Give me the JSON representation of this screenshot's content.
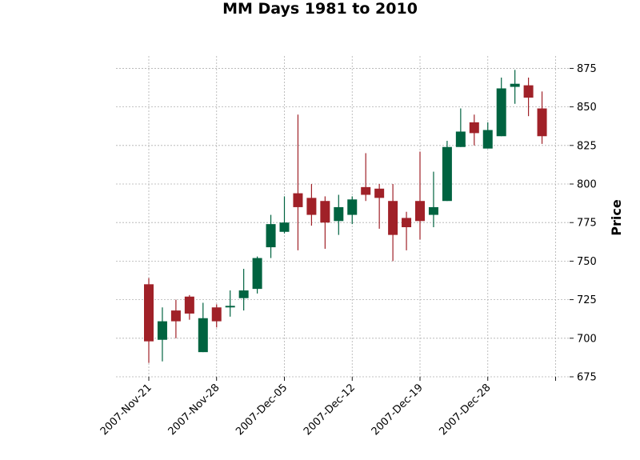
{
  "chart_data": {
    "type": "candlestick",
    "title": "MM Days 1981 to 2010",
    "ylabel": "Price",
    "ylim": [
      675,
      883
    ],
    "yticks": [
      675,
      700,
      725,
      750,
      775,
      800,
      825,
      850,
      875
    ],
    "y_axis_side": "right",
    "grid": true,
    "colors": {
      "up": "#006340",
      "down": "#a02128",
      "grid": "#b0b0b0"
    },
    "xtick_labels": [
      "2007-Nov-21",
      "2007-Nov-28",
      "2007-Dec-05",
      "2007-Dec-12",
      "2007-Dec-19",
      "2007-Dec-28",
      ""
    ],
    "xtick_positions": [
      0,
      5,
      10,
      15,
      20,
      25,
      30
    ],
    "candles": [
      {
        "open": 735,
        "high": 739,
        "low": 684,
        "close": 698
      },
      {
        "open": 699,
        "high": 720,
        "low": 685,
        "close": 711
      },
      {
        "open": 718,
        "high": 725,
        "low": 700,
        "close": 711
      },
      {
        "open": 727,
        "high": 728,
        "low": 712,
        "close": 716
      },
      {
        "open": 691,
        "high": 723,
        "low": 691,
        "close": 713
      },
      {
        "open": 720,
        "high": 722,
        "low": 707,
        "close": 711
      },
      {
        "open": 720,
        "high": 731,
        "low": 714,
        "close": 721
      },
      {
        "open": 726,
        "high": 745,
        "low": 718,
        "close": 731
      },
      {
        "open": 732,
        "high": 753,
        "low": 729,
        "close": 752
      },
      {
        "open": 759,
        "high": 780,
        "low": 752,
        "close": 774
      },
      {
        "open": 769,
        "high": 792,
        "low": 768,
        "close": 775
      },
      {
        "open": 794,
        "high": 845,
        "low": 757,
        "close": 785
      },
      {
        "open": 791,
        "high": 800,
        "low": 773,
        "close": 780
      },
      {
        "open": 789,
        "high": 792,
        "low": 758,
        "close": 775
      },
      {
        "open": 776,
        "high": 793,
        "low": 767,
        "close": 785
      },
      {
        "open": 780,
        "high": 792,
        "low": 774,
        "close": 790
      },
      {
        "open": 798,
        "high": 820,
        "low": 789,
        "close": 793
      },
      {
        "open": 797,
        "high": 800,
        "low": 771,
        "close": 791
      },
      {
        "open": 789,
        "high": 800,
        "low": 750,
        "close": 767
      },
      {
        "open": 778,
        "high": 782,
        "low": 757,
        "close": 772
      },
      {
        "open": 789,
        "high": 821,
        "low": 764,
        "close": 776
      },
      {
        "open": 780,
        "high": 808,
        "low": 772,
        "close": 785
      },
      {
        "open": 789,
        "high": 828,
        "low": 789,
        "close": 824
      },
      {
        "open": 824,
        "high": 849,
        "low": 824,
        "close": 834
      },
      {
        "open": 840,
        "high": 845,
        "low": 825,
        "close": 833
      },
      {
        "open": 823,
        "high": 840,
        "low": 823,
        "close": 835
      },
      {
        "open": 831,
        "high": 869,
        "low": 831,
        "close": 862
      },
      {
        "open": 863,
        "high": 874,
        "low": 852,
        "close": 865
      },
      {
        "open": 864,
        "high": 869,
        "low": 844,
        "close": 856
      },
      {
        "open": 849,
        "high": 860,
        "low": 826,
        "close": 831
      }
    ]
  }
}
